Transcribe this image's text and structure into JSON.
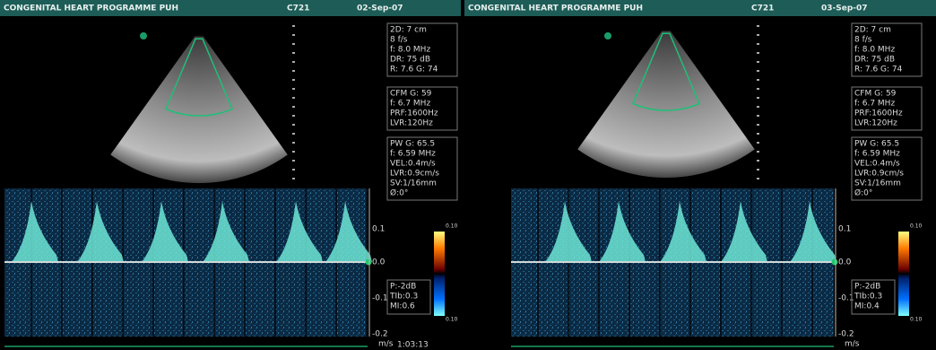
{
  "panels": [
    {
      "header": {
        "title": "CONGENITAL HEART PROGRAMME PUH",
        "code": "C721",
        "date": "02-Sep-07"
      },
      "params": {
        "two_d": [
          "2D: 7 cm",
          "8 f/s",
          "f: 8.0 MHz",
          "DR: 75 dB",
          "R: 7.6   G: 74"
        ],
        "cfm": [
          "CFM G: 59",
          "f: 6.7 MHz",
          "PRF:1600Hz",
          "LVR:120Hz"
        ],
        "pw": [
          "PW G: 65.5",
          "f: 6.59 MHz",
          "VEL:0.4m/s",
          "LVR:0.9cm/s",
          "SV:1/16mm",
          "Ø:0°"
        ]
      },
      "scale": [
        "0.1",
        "0.0",
        "-0.1",
        "-0.2"
      ],
      "unit": "m/s",
      "colorbar": [
        "0.10",
        "0.10"
      ],
      "safety": [
        "P:-2dB",
        "TIb:0.3",
        "MI:0.6"
      ],
      "time": "1:03:13"
    },
    {
      "header": {
        "title": "CONGENITAL HEART PROGRAMME PUH",
        "code": "C721",
        "date": "03-Sep-07"
      },
      "params": {
        "two_d": [
          "2D: 7 cm",
          "8 f/s",
          "f: 8.0 MHz",
          "DR: 75 dB",
          "R: 7.6   G: 74"
        ],
        "cfm": [
          "CFM G: 59",
          "f: 6.7 MHz",
          "PRF:1600Hz",
          "LVR:120Hz"
        ],
        "pw": [
          "PW G: 65.5",
          "f: 6.59 MHz",
          "VEL:0.4m/s",
          "LVR:0.9cm/s",
          "SV:1/16mm",
          "Ø:0°"
        ]
      },
      "scale": [
        "0.1",
        "0.0",
        "-0.1",
        "-0.2"
      ],
      "unit": "m/s",
      "colorbar": [
        "0.10",
        "0.10"
      ],
      "safety": [
        "P:-2dB",
        "TIb:0.3",
        "MI:0.4"
      ],
      "time": ""
    }
  ]
}
